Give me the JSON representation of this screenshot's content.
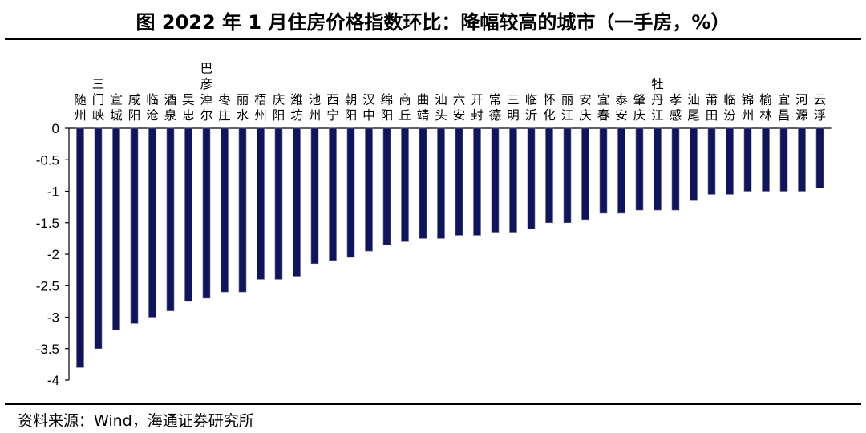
{
  "title": "图 2022 年 1 月住房价格指数环比：降幅较高的城市（一手房，%）",
  "source": "资料来源：Wind，海通证券研究所",
  "colors": {
    "bar": "#0f1460",
    "bar_edge": "#6e6e6e",
    "axis": "#000000"
  },
  "chart_data": {
    "type": "bar",
    "title": "图 2022 年 1 月住房价格指数环比：降幅较高的城市（一手房，%）",
    "xlabel": "",
    "ylabel": "",
    "ylim": [
      -4,
      0
    ],
    "yticks": [
      "0",
      "-0.5",
      "-1",
      "-1.5",
      "-2",
      "-2.5",
      "-3",
      "-3.5",
      "-4"
    ],
    "ytick_values": [
      0,
      -0.5,
      -1,
      -1.5,
      -2,
      -2.5,
      -3,
      -3.5,
      -4
    ],
    "grid": false,
    "categories": [
      "随州",
      "三门峡",
      "宣城",
      "咸阳",
      "临沧",
      "酒泉",
      "吴忠",
      "巴彦淖尔",
      "枣庄",
      "丽水",
      "梧州",
      "庆阳",
      "潍坊",
      "池州",
      "西宁",
      "朝阳",
      "汉中",
      "绵阳",
      "商丘",
      "曲靖",
      "汕头",
      "六安",
      "开封",
      "常德",
      "三明",
      "临沂",
      "怀化",
      "丽江",
      "安庆",
      "宜春",
      "泰安",
      "肇庆",
      "牡丹江",
      "孝感",
      "汕尾",
      "莆田",
      "临汾",
      "锦州",
      "榆林",
      "宜昌",
      "河源",
      "云浮"
    ],
    "values": [
      -3.8,
      -3.5,
      -3.2,
      -3.1,
      -3.0,
      -2.9,
      -2.75,
      -2.7,
      -2.6,
      -2.6,
      -2.4,
      -2.4,
      -2.35,
      -2.15,
      -2.1,
      -2.05,
      -1.95,
      -1.85,
      -1.8,
      -1.75,
      -1.75,
      -1.7,
      -1.7,
      -1.65,
      -1.65,
      -1.6,
      -1.5,
      -1.5,
      -1.45,
      -1.35,
      -1.35,
      -1.3,
      -1.3,
      -1.3,
      -1.15,
      -1.05,
      -1.05,
      -1.0,
      -1.0,
      -1.0,
      -1.0,
      -0.95
    ]
  }
}
